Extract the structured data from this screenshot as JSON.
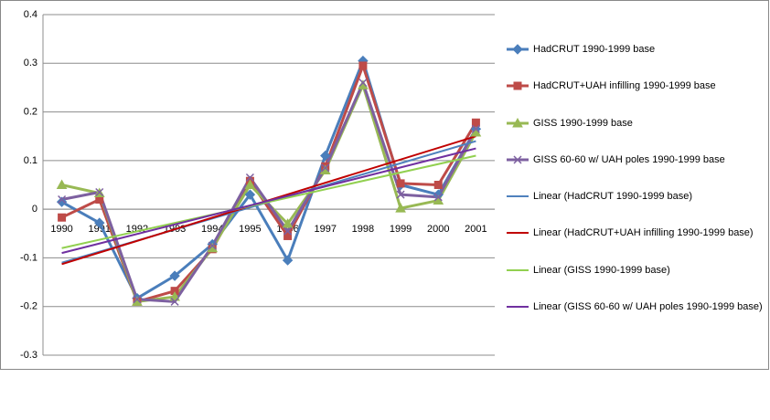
{
  "chart_data": {
    "type": "line",
    "categories": [
      "1990",
      "1991",
      "1992",
      "1993",
      "1994",
      "1995",
      "1996",
      "1997",
      "1998",
      "1999",
      "2000",
      "2001"
    ],
    "series": [
      {
        "name": "HadCRUT 1990-1999 base",
        "color": "#4a7ebb",
        "marker": "diamond",
        "values": [
          0.015,
          -0.028,
          -0.183,
          -0.137,
          -0.072,
          0.03,
          -0.105,
          0.11,
          0.305,
          0.05,
          0.03,
          0.165
        ]
      },
      {
        "name": "HadCRUT+UAH infilling 1990-1999 base",
        "color": "#be4b48",
        "marker": "square",
        "values": [
          -0.017,
          0.02,
          -0.19,
          -0.168,
          -0.082,
          0.058,
          -0.055,
          0.088,
          0.295,
          0.053,
          0.05,
          0.178
        ]
      },
      {
        "name": "GISS 1990-1999 base",
        "color": "#98b954",
        "marker": "triangle",
        "values": [
          0.05,
          0.033,
          -0.19,
          -0.18,
          -0.08,
          0.05,
          -0.03,
          0.08,
          0.255,
          0.002,
          0.018,
          0.158
        ]
      },
      {
        "name": "GISS 60-60 w/ UAH poles 1990-1999 base",
        "color": "#7d60a0",
        "marker": "x",
        "values": [
          0.02,
          0.035,
          -0.185,
          -0.19,
          -0.075,
          0.065,
          -0.045,
          0.085,
          0.26,
          0.03,
          0.025,
          0.165
        ]
      }
    ],
    "trendlines": [
      {
        "name": "Linear (HadCRUT 1990-1999 base)",
        "color": "#4f81bd",
        "start": -0.11,
        "end": 0.14
      },
      {
        "name": "Linear (HadCRUT+UAH infilling 1990-1999 base)",
        "color": "#c00000",
        "start": -0.113,
        "end": 0.15
      },
      {
        "name": "Linear (GISS 1990-1999 base)",
        "color": "#92d050",
        "start": -0.08,
        "end": 0.11
      },
      {
        "name": "Linear (GISS 60-60 w/ UAH poles 1990-1999 base)",
        "color": "#7030a0",
        "start": -0.09,
        "end": 0.125
      }
    ],
    "ylim": [
      -0.3,
      0.4
    ],
    "yticks": [
      -0.3,
      -0.2,
      -0.1,
      0,
      0.1,
      0.2,
      0.3,
      0.4
    ],
    "grid": true,
    "legend": "right"
  }
}
